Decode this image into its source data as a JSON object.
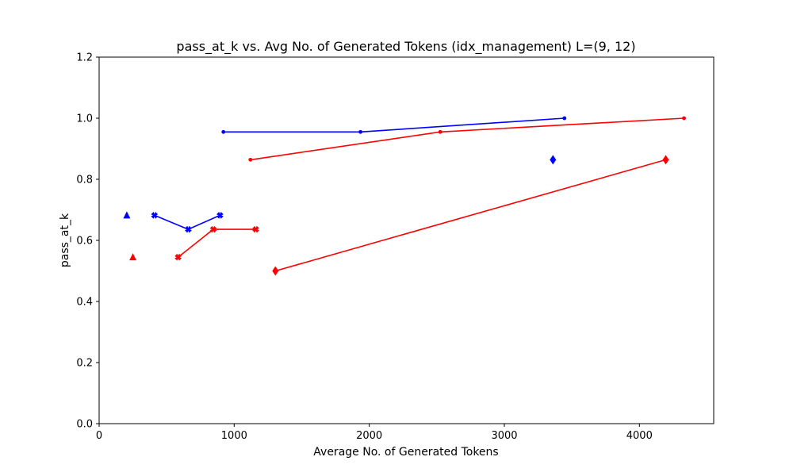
{
  "chart_data": {
    "type": "line",
    "title": "pass_at_k vs. Avg No. of Generated Tokens (idx_management) L=(9, 12)",
    "xlabel": "Average No. of Generated Tokens",
    "ylabel": "pass_at_k",
    "xlim": [
      0,
      4550
    ],
    "ylim": [
      0,
      1.2
    ],
    "xticks": [
      0,
      1000,
      2000,
      3000,
      4000
    ],
    "yticks": [
      0.0,
      0.2,
      0.4,
      0.6,
      0.8,
      1.0,
      1.2
    ],
    "xtick_labels": [
      "0",
      "1000",
      "2000",
      "3000",
      "4000"
    ],
    "ytick_labels": [
      "0.0",
      "0.2",
      "0.4",
      "0.6",
      "0.8",
      "1.0",
      "1.2"
    ],
    "grid": false,
    "series": [
      {
        "color": "#0000ff",
        "marker": "circle",
        "points": [
          [
            920,
            0.955
          ],
          [
            1935,
            0.955
          ],
          [
            3445,
            1.0
          ]
        ]
      },
      {
        "color": "#ff0000",
        "marker": "circle",
        "points": [
          [
            1120,
            0.864
          ],
          [
            2525,
            0.955
          ],
          [
            4330,
            1.0
          ]
        ]
      },
      {
        "color": "#0000ff",
        "marker": "triangle",
        "points": [
          [
            205,
            0.682
          ]
        ]
      },
      {
        "color": "#ff0000",
        "marker": "triangle",
        "points": [
          [
            250,
            0.545
          ]
        ]
      },
      {
        "color": "#0000ff",
        "marker": "x",
        "points": [
          [
            410,
            0.682
          ],
          [
            660,
            0.636
          ],
          [
            895,
            0.682
          ]
        ]
      },
      {
        "color": "#ff0000",
        "marker": "x",
        "points": [
          [
            585,
            0.545
          ],
          [
            845,
            0.636
          ],
          [
            1160,
            0.636
          ]
        ]
      },
      {
        "color": "#0000ff",
        "marker": "diamond",
        "points": [
          [
            3360,
            0.864
          ]
        ]
      },
      {
        "color": "#ff0000",
        "marker": "diamond",
        "points": [
          [
            1305,
            0.5
          ],
          [
            4195,
            0.864
          ]
        ]
      }
    ]
  }
}
